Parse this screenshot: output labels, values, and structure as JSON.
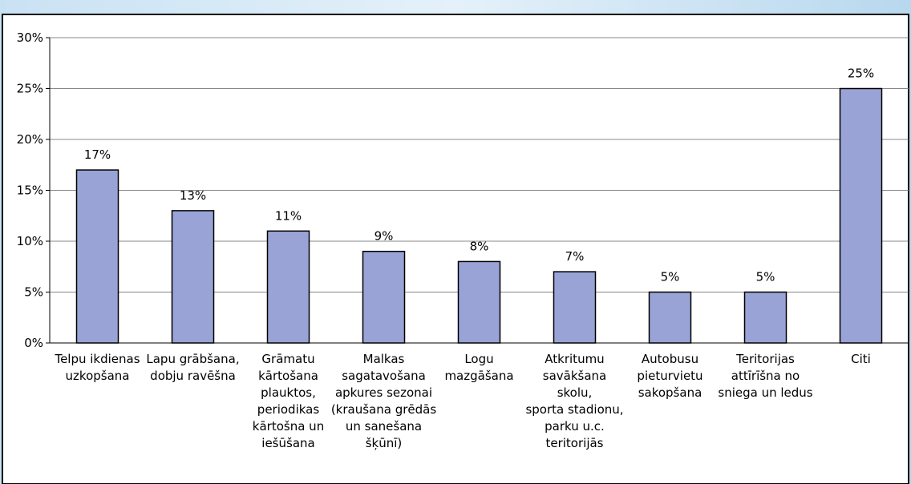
{
  "chart_data": {
    "type": "bar",
    "categories": [
      [
        "Telpu ikdienas",
        "uzkopšana"
      ],
      [
        "Lapu grābšana,",
        "dobju ravēšna"
      ],
      [
        "Grāmatu",
        "kārtošana",
        "plauktos,",
        "periodikas",
        "kārtošna un",
        "iešūšana"
      ],
      [
        "Malkas",
        "sagatavošana",
        "apkures sezonai",
        "(kraušana grēdās",
        "un sanešana",
        "šķūnī)"
      ],
      [
        "Logu",
        "mazgāšana"
      ],
      [
        "Atkritumu",
        "savākšana",
        "skolu,",
        "sporta stadionu,",
        "parku u.c.",
        "teritorijās"
      ],
      [
        "Autobusu",
        "pieturvietu",
        "sakopšana"
      ],
      [
        "Teritorijas",
        "attīrīšna no",
        "sniega un ledus"
      ],
      [
        "Citi"
      ]
    ],
    "values": [
      17,
      13,
      11,
      9,
      8,
      7,
      5,
      5,
      25
    ],
    "value_labels": [
      "17%",
      "13%",
      "11%",
      "9%",
      "8%",
      "7%",
      "5%",
      "5%",
      "25%"
    ],
    "color": "#99a3d6",
    "ylim": [
      0,
      30
    ],
    "yticks": [
      {
        "value": 0,
        "label": "0%"
      },
      {
        "value": 5,
        "label": "5%"
      },
      {
        "value": 10,
        "label": "10%"
      },
      {
        "value": 15,
        "label": "15%"
      },
      {
        "value": 20,
        "label": "20%"
      },
      {
        "value": 25,
        "label": "25%"
      },
      {
        "value": 30,
        "label": "30%"
      }
    ],
    "grid": true
  }
}
